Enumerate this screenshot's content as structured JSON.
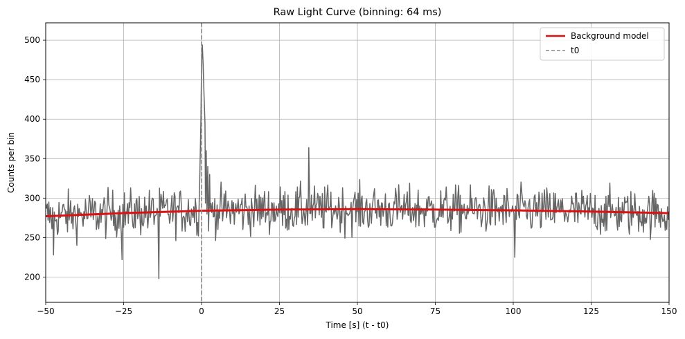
{
  "chart_data": {
    "type": "line",
    "title": "Raw Light Curve (binning: 64 ms)",
    "xlabel": "Time [s] (t - t0)",
    "ylabel": "Counts per bin",
    "xlim": [
      -50,
      150
    ],
    "ylim": [
      168,
      522
    ],
    "grid": true,
    "legend_position": "top-right",
    "x_ticks": [
      -50,
      -25,
      0,
      25,
      50,
      75,
      100,
      125,
      150
    ],
    "y_ticks": [
      200,
      250,
      300,
      350,
      400,
      450,
      500
    ],
    "x_tick_labels": [
      "−50",
      "−25",
      "0",
      "25",
      "50",
      "75",
      "100",
      "125",
      "150"
    ],
    "y_tick_labels": [
      "200",
      "250",
      "300",
      "350",
      "400",
      "450",
      "500"
    ],
    "series": [
      {
        "name": "",
        "color": "#666666",
        "style": "solid",
        "binning_s": 0.064,
        "baseline_counts": 284,
        "noise_range_counts": [
          235,
          335
        ],
        "features": [
          {
            "x": -47.5,
            "y": 228
          },
          {
            "x": -25.5,
            "y": 222
          },
          {
            "x": -13.7,
            "y": 198
          },
          {
            "x": -0.6,
            "y": 320
          },
          {
            "x": -0.2,
            "y": 400
          },
          {
            "x": 0.0,
            "y": 470
          },
          {
            "x": 0.25,
            "y": 494
          },
          {
            "x": 0.5,
            "y": 470
          },
          {
            "x": 0.8,
            "y": 430
          },
          {
            "x": 1.1,
            "y": 395
          },
          {
            "x": 1.5,
            "y": 360
          },
          {
            "x": 2.0,
            "y": 340
          },
          {
            "x": 2.6,
            "y": 330
          },
          {
            "x": 34.4,
            "y": 364
          },
          {
            "x": 100.5,
            "y": 225
          }
        ]
      },
      {
        "name": "Background model",
        "color": "#dd1111",
        "style": "solid",
        "x": [
          -50,
          -25,
          0,
          25,
          50,
          75,
          100,
          125,
          150
        ],
        "y": [
          277,
          281,
          284,
          285.5,
          286,
          285.5,
          284.5,
          283,
          281
        ]
      },
      {
        "name": "t0",
        "color": "#888888",
        "style": "dashed",
        "vline_x": 0
      }
    ]
  }
}
